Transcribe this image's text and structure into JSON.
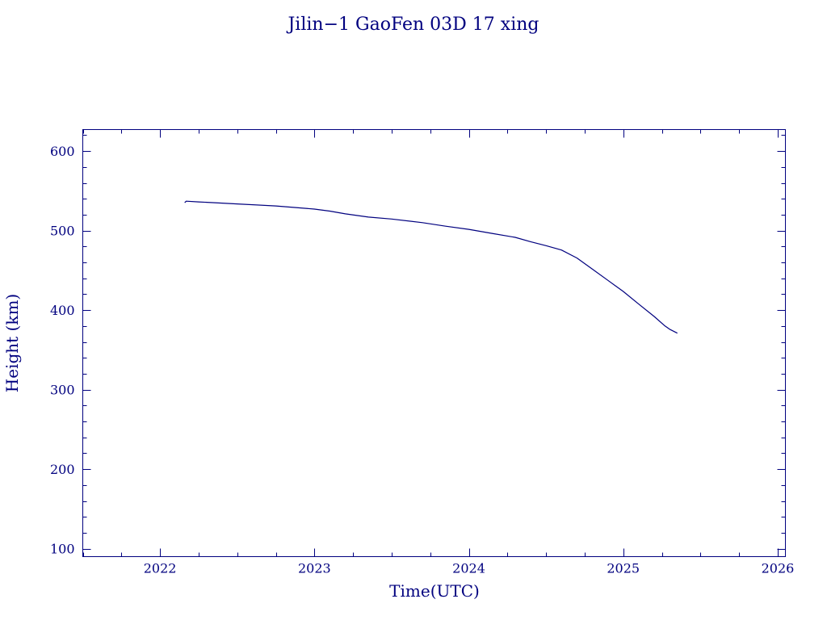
{
  "colors": {
    "ink": "#00007f",
    "background": "#ffffff"
  },
  "chart_data": {
    "type": "line",
    "title": "Jilin−1 GaoFen 03D 17 xing",
    "xlabel": "Time(UTC)",
    "ylabel": "Height (km)",
    "xlim": [
      2021.5,
      2026.05
    ],
    "ylim": [
      90,
      627
    ],
    "xticks": [
      2022,
      2023,
      2024,
      2025,
      2026
    ],
    "yticks": [
      100,
      200,
      300,
      400,
      500,
      600
    ],
    "grid": false,
    "series": [
      {
        "x": [
          2022.16,
          2022.17,
          2022.25,
          2022.5,
          2022.75,
          2023.0,
          2023.1,
          2023.2,
          2023.35,
          2023.5,
          2023.7,
          2023.85,
          2024.0,
          2024.15,
          2024.3,
          2024.4,
          2024.5,
          2024.6,
          2024.7,
          2024.8,
          2024.9,
          2025.0,
          2025.1,
          2025.2,
          2025.27,
          2025.3,
          2025.35
        ],
        "y": [
          535,
          537,
          536,
          533.5,
          531,
          527,
          524.5,
          521,
          517,
          514.5,
          510,
          505.5,
          501.5,
          496.5,
          491.5,
          486,
          481,
          475.5,
          465.5,
          451.5,
          437.5,
          423.5,
          407.5,
          392,
          380,
          376,
          371
        ]
      }
    ]
  }
}
